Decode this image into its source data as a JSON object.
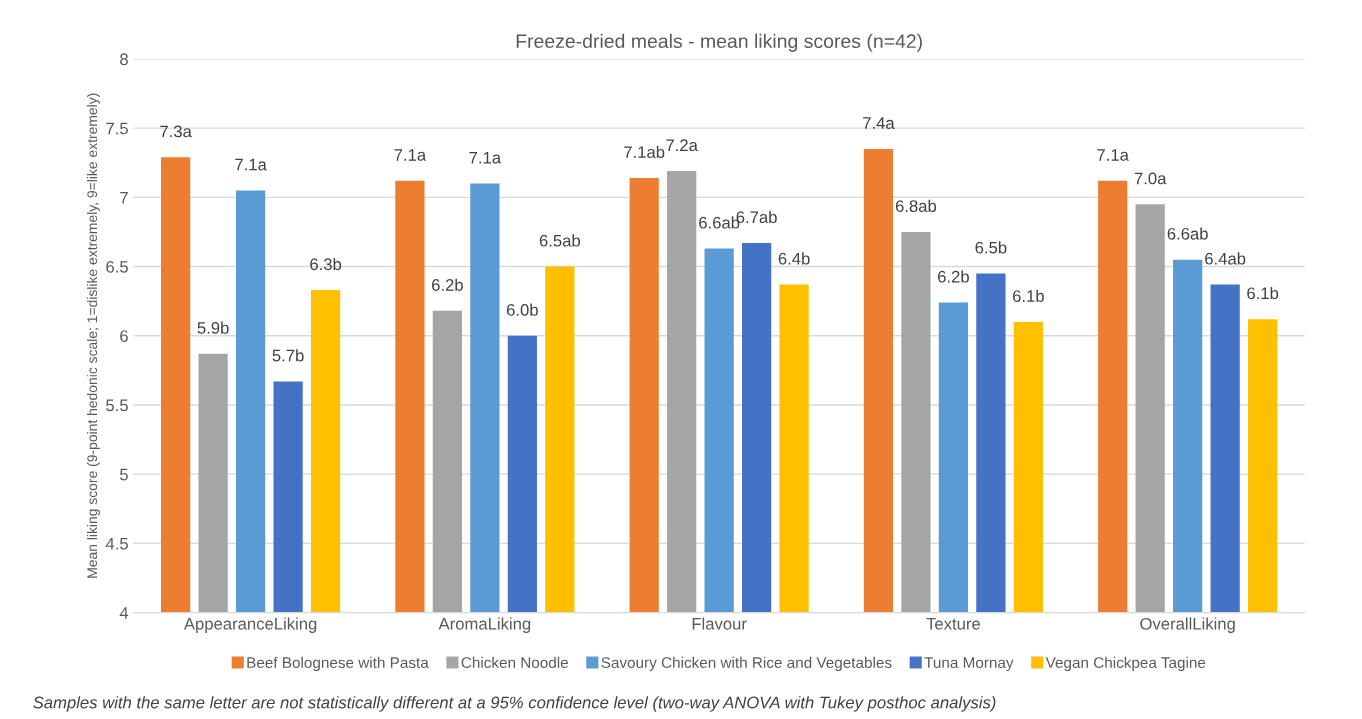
{
  "chart_data": {
    "type": "bar",
    "title": "Freeze-dried meals - mean liking scores (n=42)",
    "ylabel": "Mean liking score (9-point hedonic scale; 1=dislike extremely, 9=like extremely)",
    "categories": [
      "AppearanceLiking",
      "AromaLiking",
      "Flavour",
      "Texture",
      "OverallLiking"
    ],
    "series": [
      {
        "name": "Beef Bolognese with Pasta",
        "color": "#ed7d31",
        "values": [
          7.29,
          7.12,
          7.14,
          7.35,
          7.12
        ],
        "value_labels": [
          "7.3a",
          "7.1a",
          "7.1ab",
          "7.4a",
          "7.1a"
        ]
      },
      {
        "name": "Chicken Noodle",
        "color": "#a5a5a5",
        "values": [
          5.87,
          6.18,
          7.19,
          6.75,
          6.95
        ],
        "value_labels": [
          "5.9b",
          "6.2b",
          "7.2a",
          "6.8ab",
          "7.0a"
        ]
      },
      {
        "name": "Savoury Chicken with Rice and Vegetables",
        "color": "#5b9bd5",
        "values": [
          7.05,
          7.1,
          6.63,
          6.24,
          6.55
        ],
        "value_labels": [
          "7.1a",
          "7.1a",
          "6.6ab",
          "6.2b",
          "6.6ab"
        ]
      },
      {
        "name": "Tuna Mornay",
        "color": "#4472c4",
        "values": [
          5.67,
          6.0,
          6.67,
          6.45,
          6.37
        ],
        "value_labels": [
          "5.7b",
          "6.0b",
          "6.7ab",
          "6.5b",
          "6.4ab"
        ]
      },
      {
        "name": "Vegan Chickpea Tagine",
        "color": "#ffc000",
        "values": [
          6.33,
          6.5,
          6.37,
          6.1,
          6.12
        ],
        "value_labels": [
          "6.3b",
          "6.5ab",
          "6.4b",
          "6.1b",
          "6.1b"
        ]
      }
    ],
    "ylim": [
      4,
      8
    ],
    "yticks": [
      4,
      4.5,
      5,
      5.5,
      6,
      6.5,
      7,
      7.5,
      8
    ],
    "grid": "y",
    "legend": "bottom",
    "annotations": [
      "Samples with the same letter are not statistically different at a 95% confidence level (two-way ANOVA with Tukey posthoc analysis)"
    ]
  }
}
